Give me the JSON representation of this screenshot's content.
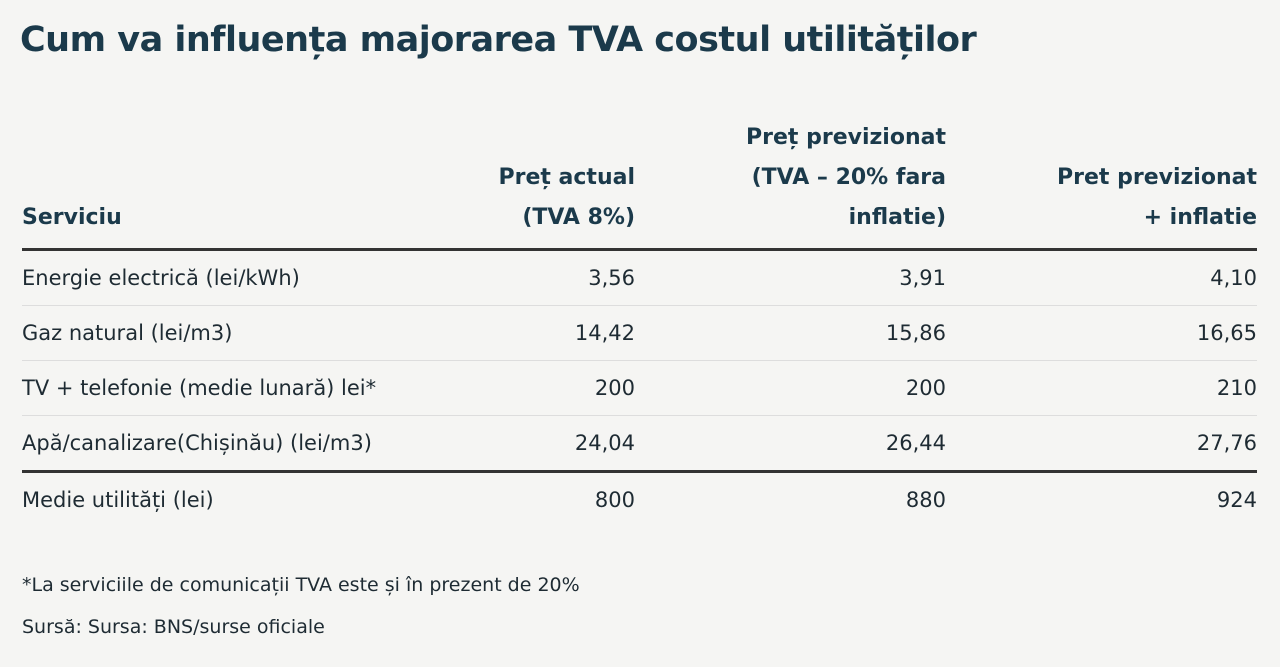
{
  "title": "Cum va influența majorarea TVA costul utilităților",
  "table": {
    "header": [
      {
        "lines": [
          "Serviciu"
        ]
      },
      {
        "lines": [
          "Preț actual",
          "(TVA 8%)"
        ]
      },
      {
        "lines": [
          "Preț previzionat",
          "(TVA – 20% fara",
          "inflatie)"
        ]
      },
      {
        "lines": [
          "Pret previzionat",
          "+ inflatie"
        ]
      }
    ],
    "rows": [
      [
        "Energie electrică (lei/kWh)",
        "3,56",
        "3,91",
        "4,10"
      ],
      [
        "Gaz natural (lei/m3)",
        "14,42",
        "15,86",
        "16,65"
      ],
      [
        "TV + telefonie (medie lunară) lei*",
        "200",
        "200",
        "210"
      ],
      [
        "Apă/canalizare(Chișinău) (lei/m3)",
        "24,04",
        "26,44",
        "27,76"
      ]
    ],
    "total": [
      "Medie utilități (lei)",
      "800",
      "880",
      "924"
    ]
  },
  "footer": {
    "note": "*La serviciile de comunicații TVA este și în prezent de 20%",
    "source": "Sursă: Sursa: BNS/surse oficiale"
  }
}
